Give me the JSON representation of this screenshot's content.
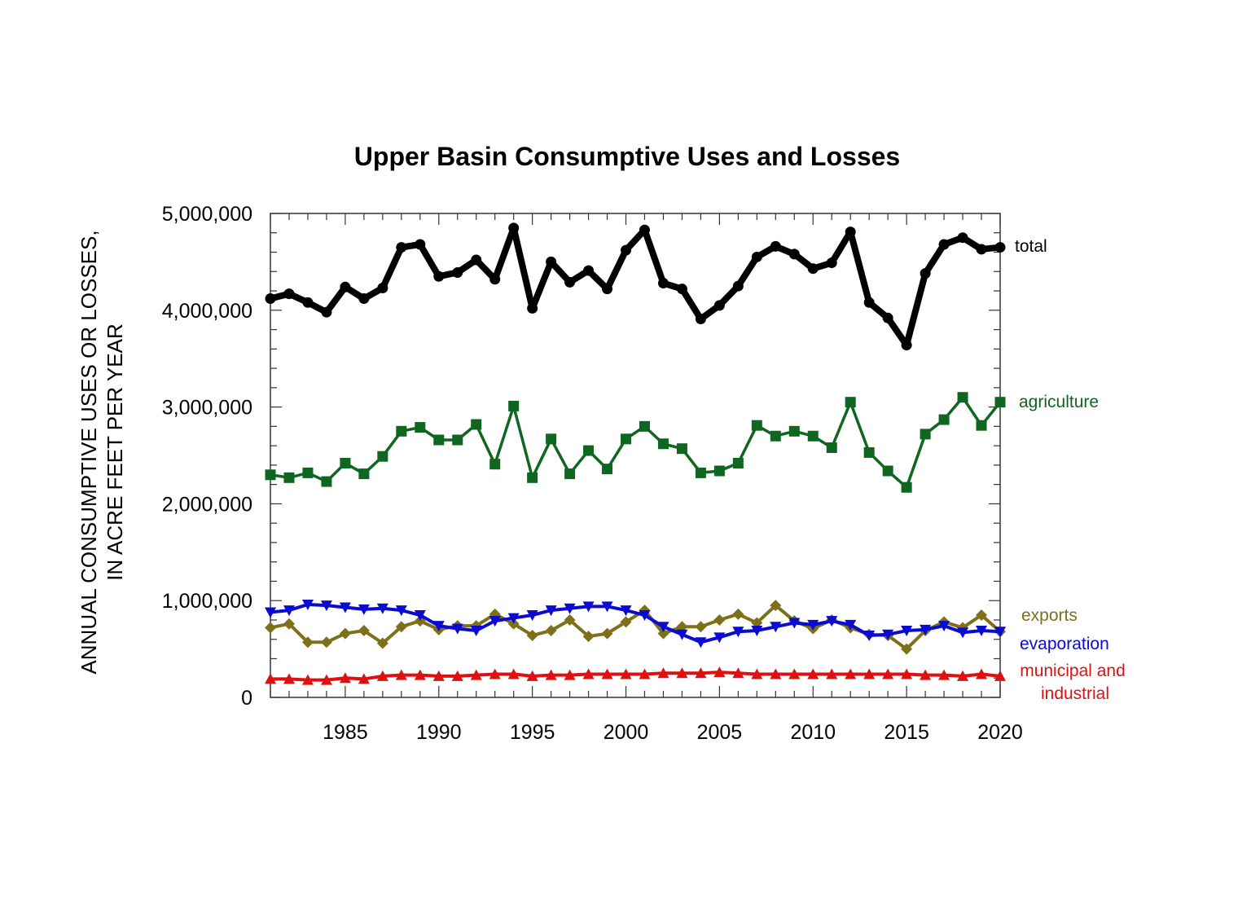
{
  "chart_data": {
    "type": "line",
    "title": "Upper Basin Consumptive Uses and Losses",
    "xlabel": "",
    "ylabel_lines": [
      "ANNUAL CONSUMPTIVE USES OR LOSSES,",
      "IN ACRE FEET PER YEAR"
    ],
    "xlim": [
      1981,
      2020
    ],
    "ylim": [
      0,
      5000000
    ],
    "grid": false,
    "y_ticks": [
      0,
      1000000,
      2000000,
      3000000,
      4000000,
      5000000
    ],
    "y_tick_labels": [
      "0",
      "1,000,000",
      "2,000,000",
      "3,000,000",
      "4,000,000",
      "5,000,000"
    ],
    "x_ticks": [
      1985,
      1990,
      1995,
      2000,
      2005,
      2010,
      2015,
      2020
    ],
    "x_tick_labels": [
      "1985",
      "1990",
      "1995",
      "2000",
      "2005",
      "2010",
      "2015",
      "2020"
    ],
    "legend_placement": "right-end-labels",
    "x": [
      1981,
      1982,
      1983,
      1984,
      1985,
      1986,
      1987,
      1988,
      1989,
      1990,
      1991,
      1992,
      1993,
      1994,
      1995,
      1996,
      1997,
      1998,
      1999,
      2000,
      2001,
      2002,
      2003,
      2004,
      2005,
      2006,
      2007,
      2008,
      2009,
      2010,
      2011,
      2012,
      2013,
      2014,
      2015,
      2016,
      2017,
      2018,
      2019,
      2020
    ],
    "series": [
      {
        "name": "total",
        "legend_label": "total",
        "color": "#000000",
        "marker": "circle",
        "values": [
          4120000,
          4170000,
          4080000,
          3980000,
          4240000,
          4120000,
          4230000,
          4650000,
          4680000,
          4350000,
          4390000,
          4520000,
          4320000,
          4850000,
          4020000,
          4500000,
          4290000,
          4410000,
          4220000,
          4620000,
          4830000,
          4280000,
          4220000,
          3910000,
          4050000,
          4250000,
          4550000,
          4660000,
          4580000,
          4430000,
          4490000,
          4810000,
          4080000,
          3920000,
          3640000,
          4380000,
          4680000,
          4750000,
          4630000,
          4650000
        ]
      },
      {
        "name": "agriculture",
        "legend_label": "agriculture",
        "color": "#0f6620",
        "marker": "square",
        "values": [
          2300000,
          2270000,
          2320000,
          2230000,
          2420000,
          2310000,
          2490000,
          2750000,
          2790000,
          2660000,
          2660000,
          2820000,
          2410000,
          3010000,
          2270000,
          2670000,
          2310000,
          2550000,
          2360000,
          2670000,
          2800000,
          2620000,
          2570000,
          2320000,
          2340000,
          2420000,
          2810000,
          2700000,
          2750000,
          2700000,
          2580000,
          3050000,
          2530000,
          2340000,
          2170000,
          2720000,
          2870000,
          3100000,
          2810000,
          3050000
        ]
      },
      {
        "name": "exports",
        "legend_label": "exports",
        "color": "#7d7019",
        "marker": "diamond",
        "values": [
          720000,
          760000,
          570000,
          570000,
          660000,
          690000,
          560000,
          730000,
          790000,
          700000,
          740000,
          740000,
          860000,
          760000,
          640000,
          690000,
          800000,
          630000,
          660000,
          780000,
          900000,
          660000,
          730000,
          730000,
          800000,
          860000,
          770000,
          950000,
          790000,
          710000,
          800000,
          720000,
          650000,
          640000,
          500000,
          690000,
          780000,
          720000,
          850000,
          680000
        ]
      },
      {
        "name": "evaporation",
        "legend_label": "evaporation",
        "color": "#0a0ad0",
        "marker": "triangle-down",
        "values": [
          880000,
          900000,
          960000,
          950000,
          930000,
          910000,
          920000,
          900000,
          850000,
          740000,
          710000,
          690000,
          790000,
          820000,
          850000,
          900000,
          920000,
          940000,
          940000,
          900000,
          850000,
          730000,
          650000,
          570000,
          620000,
          680000,
          690000,
          730000,
          770000,
          750000,
          790000,
          750000,
          640000,
          650000,
          690000,
          700000,
          740000,
          670000,
          690000,
          680000
        ]
      },
      {
        "name": "municipal and industrial",
        "legend_label_lines": [
          "municipal and",
          "industrial"
        ],
        "color": "#dd1111",
        "marker": "triangle-up",
        "values": [
          190000,
          190000,
          180000,
          180000,
          200000,
          190000,
          220000,
          230000,
          230000,
          220000,
          220000,
          230000,
          240000,
          240000,
          220000,
          230000,
          230000,
          240000,
          240000,
          240000,
          240000,
          250000,
          250000,
          250000,
          260000,
          250000,
          240000,
          240000,
          240000,
          240000,
          240000,
          240000,
          240000,
          240000,
          240000,
          230000,
          230000,
          220000,
          240000,
          220000
        ]
      }
    ]
  }
}
